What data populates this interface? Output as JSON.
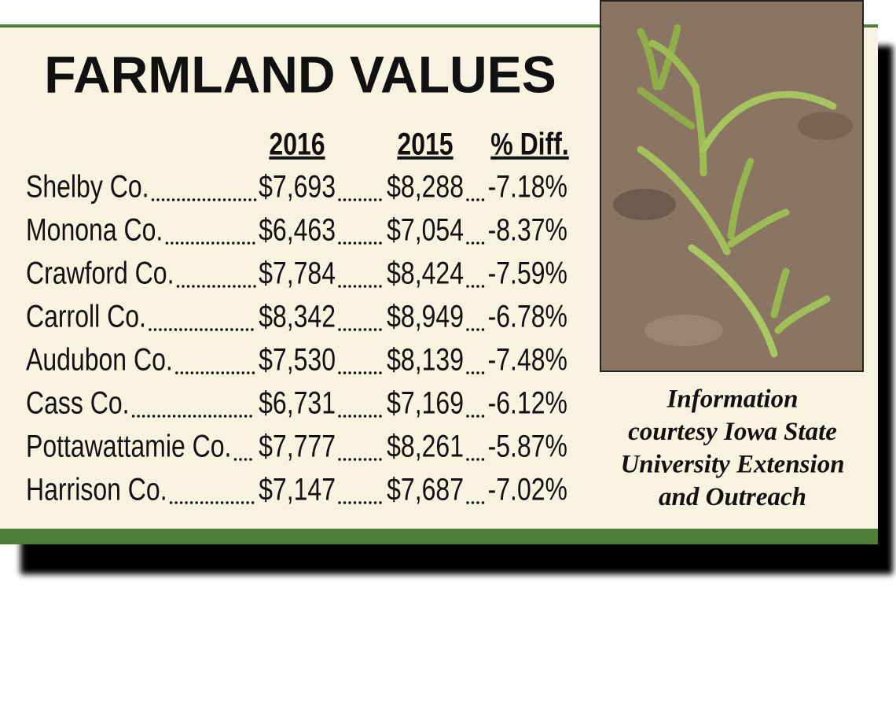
{
  "header": {
    "title": "FARMLAND VALUES"
  },
  "table": {
    "columns": [
      "2016",
      "2015",
      "% Diff."
    ],
    "rows": [
      [
        "Shelby Co.",
        "$7,693",
        "$8,288",
        "-7.18%"
      ],
      [
        "Monona Co.",
        "$6,463",
        "$7,054",
        "-8.37%"
      ],
      [
        "Crawford Co.",
        "$7,784",
        "$8,424",
        "-7.59%"
      ],
      [
        "Carroll Co.",
        "$8,342",
        "$8,949",
        "-6.78%"
      ],
      [
        "Audubon Co.",
        "$7,530",
        "$8,139",
        "-7.48%"
      ],
      [
        "Cass Co.",
        "$6,731",
        "$7,169",
        "-6.12%"
      ],
      [
        "Pottawattamie Co.",
        "$7,777",
        "$8,261",
        "-5.87%"
      ],
      [
        "Harrison Co.",
        "$7,147",
        "$7,687",
        "-7.02%"
      ]
    ]
  },
  "caption": {
    "lines": [
      "Information",
      "courtesy Iowa State",
      "University Extension",
      "and Outreach"
    ]
  }
}
